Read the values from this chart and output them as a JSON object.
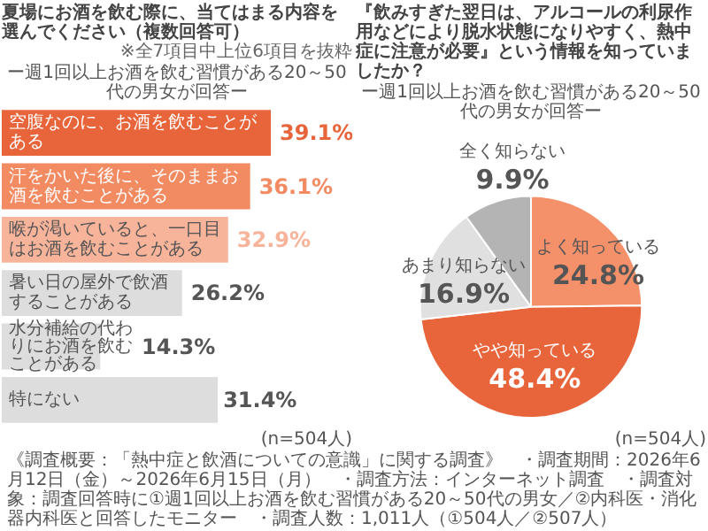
{
  "chart_data": [
    {
      "type": "bar",
      "orientation": "horizontal",
      "title": "夏場にお酒を飲む際に、当てはまる内容を選んでください（複数回答可）",
      "subtitle": "ー週1回以上お酒を飲む習慣がある20～50代の男女が回答ー",
      "annotations": [
        "※全7項目中上位6項目を抜粋",
        "(n=504人)"
      ],
      "categories": [
        "空腹なのに、お酒を飲むことがある",
        "汗をかいた後に、そのままお酒を飲むことがある",
        "喉が渇いていると、一口目はお酒を飲むことがある",
        "暑い日の屋外で飲酒することがある",
        "水分補給の代わりにお酒を飲むことがある",
        "特にない"
      ],
      "values": [
        39.1,
        36.1,
        32.9,
        26.2,
        14.3,
        31.4
      ],
      "value_labels": [
        "39.1%",
        "36.1%",
        "32.9%",
        "26.2%",
        "14.3%",
        "31.4%"
      ],
      "colors": [
        "#e8643a",
        "#f28a62",
        "#f8b49a",
        "#dddddd",
        "#dddddd",
        "#dddddd"
      ]
    },
    {
      "type": "pie",
      "title": "『飲みすぎた翌日は、アルコールの利尿作用などにより脱水状態になりやすく、熱中症に注意が必要』という情報を知っていましたか？",
      "subtitle": "ー週1回以上お酒を飲む習慣がある20～50代の男女が回答ー",
      "annotations": [
        "(n=504人)",
        "《調査概要：「熱中症と飲酒についての意識」に関する調査》",
        "・調査期間：2026年6月12日（金）～2026年6月15日（月）",
        "・調査方法：インターネット調査",
        "・調査対象：調査回答時に①週1回以上お酒を飲む習慣がある20～50代の男女／②内科医・消化器内科医と回答したモニター",
        "・調査人数：1,011人（①504人／②507人）"
      ],
      "categories": [
        "よく知っている",
        "やや知っている",
        "あまり知らない",
        "全く知らない"
      ],
      "values": [
        24.8,
        48.4,
        16.9,
        9.9
      ],
      "value_labels": [
        "24.8%",
        "48.4%",
        "16.9%",
        "9.9%"
      ],
      "colors": [
        "#f4906a",
        "#e8643a",
        "#e0e0e0",
        "#b4b4b4"
      ]
    }
  ]
}
